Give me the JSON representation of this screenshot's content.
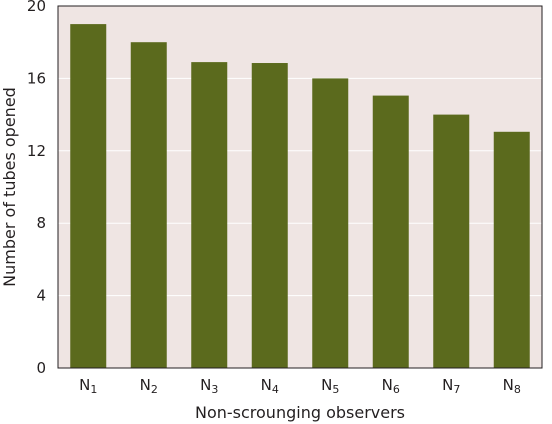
{
  "chart_data": {
    "type": "bar",
    "title": "",
    "xlabel": "Non-scrounging observers",
    "ylabel": "Number of tubes opened",
    "ylim": [
      0,
      20
    ],
    "yticks": [
      0,
      4,
      8,
      12,
      16,
      20
    ],
    "grid": true,
    "legend": "none",
    "categories": [
      {
        "base": "N",
        "sub": "1"
      },
      {
        "base": "N",
        "sub": "2"
      },
      {
        "base": "N",
        "sub": "3"
      },
      {
        "base": "N",
        "sub": "4"
      },
      {
        "base": "N",
        "sub": "5"
      },
      {
        "base": "N",
        "sub": "6"
      },
      {
        "base": "N",
        "sub": "7"
      },
      {
        "base": "N",
        "sub": "8"
      }
    ],
    "values": [
      19,
      18,
      16.9,
      16.85,
      16,
      15.05,
      14,
      13.05
    ],
    "colors": {
      "plot_background": "#efe5e3",
      "bar": "#5b6a1d",
      "grid": "#ffffff",
      "axis": "#231f20"
    }
  }
}
